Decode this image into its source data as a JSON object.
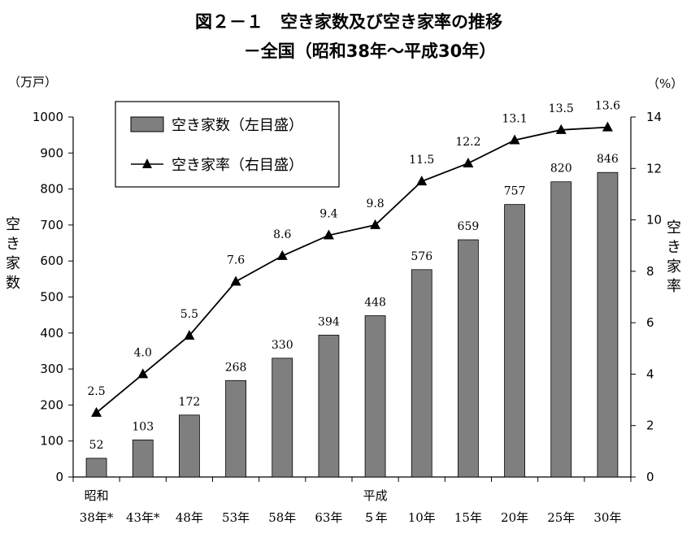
{
  "chart_data": {
    "type": "bar+line",
    "title": "図２－１　空き家数及び空き家率の推移",
    "subtitle": "－全国（昭和38年～平成30年）",
    "left_unit": "（万戸）",
    "right_unit": "（%）",
    "left_axis_label": "空き家数",
    "right_axis_label": "空き家率",
    "era_labels": [
      {
        "at": 0,
        "text": "昭和"
      },
      {
        "at": 6,
        "text": "平成"
      }
    ],
    "categories": [
      "38年*",
      "43年*",
      "48年",
      "53年",
      "58年",
      "63年",
      "５年",
      "10年",
      "15年",
      "20年",
      "25年",
      "30年"
    ],
    "y_left": {
      "min": 0,
      "max": 1000,
      "ticks": [
        0,
        100,
        200,
        300,
        400,
        500,
        600,
        700,
        800,
        900,
        1000
      ]
    },
    "y_right": {
      "min": 0,
      "max": 14,
      "ticks": [
        0,
        2,
        4,
        6,
        8,
        10,
        12,
        14
      ]
    },
    "series": [
      {
        "name": "空き家数（左目盛）",
        "kind": "bar",
        "axis": "left",
        "color": "#7f7f7f",
        "values": [
          52,
          103,
          172,
          268,
          330,
          394,
          448,
          576,
          659,
          757,
          820,
          846
        ]
      },
      {
        "name": "空き家率（右目盛）",
        "kind": "line",
        "axis": "right",
        "color": "#000000",
        "marker": "triangle",
        "values": [
          2.5,
          4.0,
          5.5,
          7.6,
          8.6,
          9.4,
          9.8,
          11.5,
          12.2,
          13.1,
          13.5,
          13.6
        ],
        "labels": [
          "2.5",
          "4.0",
          "5.5",
          "7.6",
          "8.6",
          "9.4",
          "9.8",
          "11.5",
          "12.2",
          "13.1",
          "13.5",
          "13.6"
        ]
      }
    ],
    "legend": "top-left",
    "grid": false
  }
}
